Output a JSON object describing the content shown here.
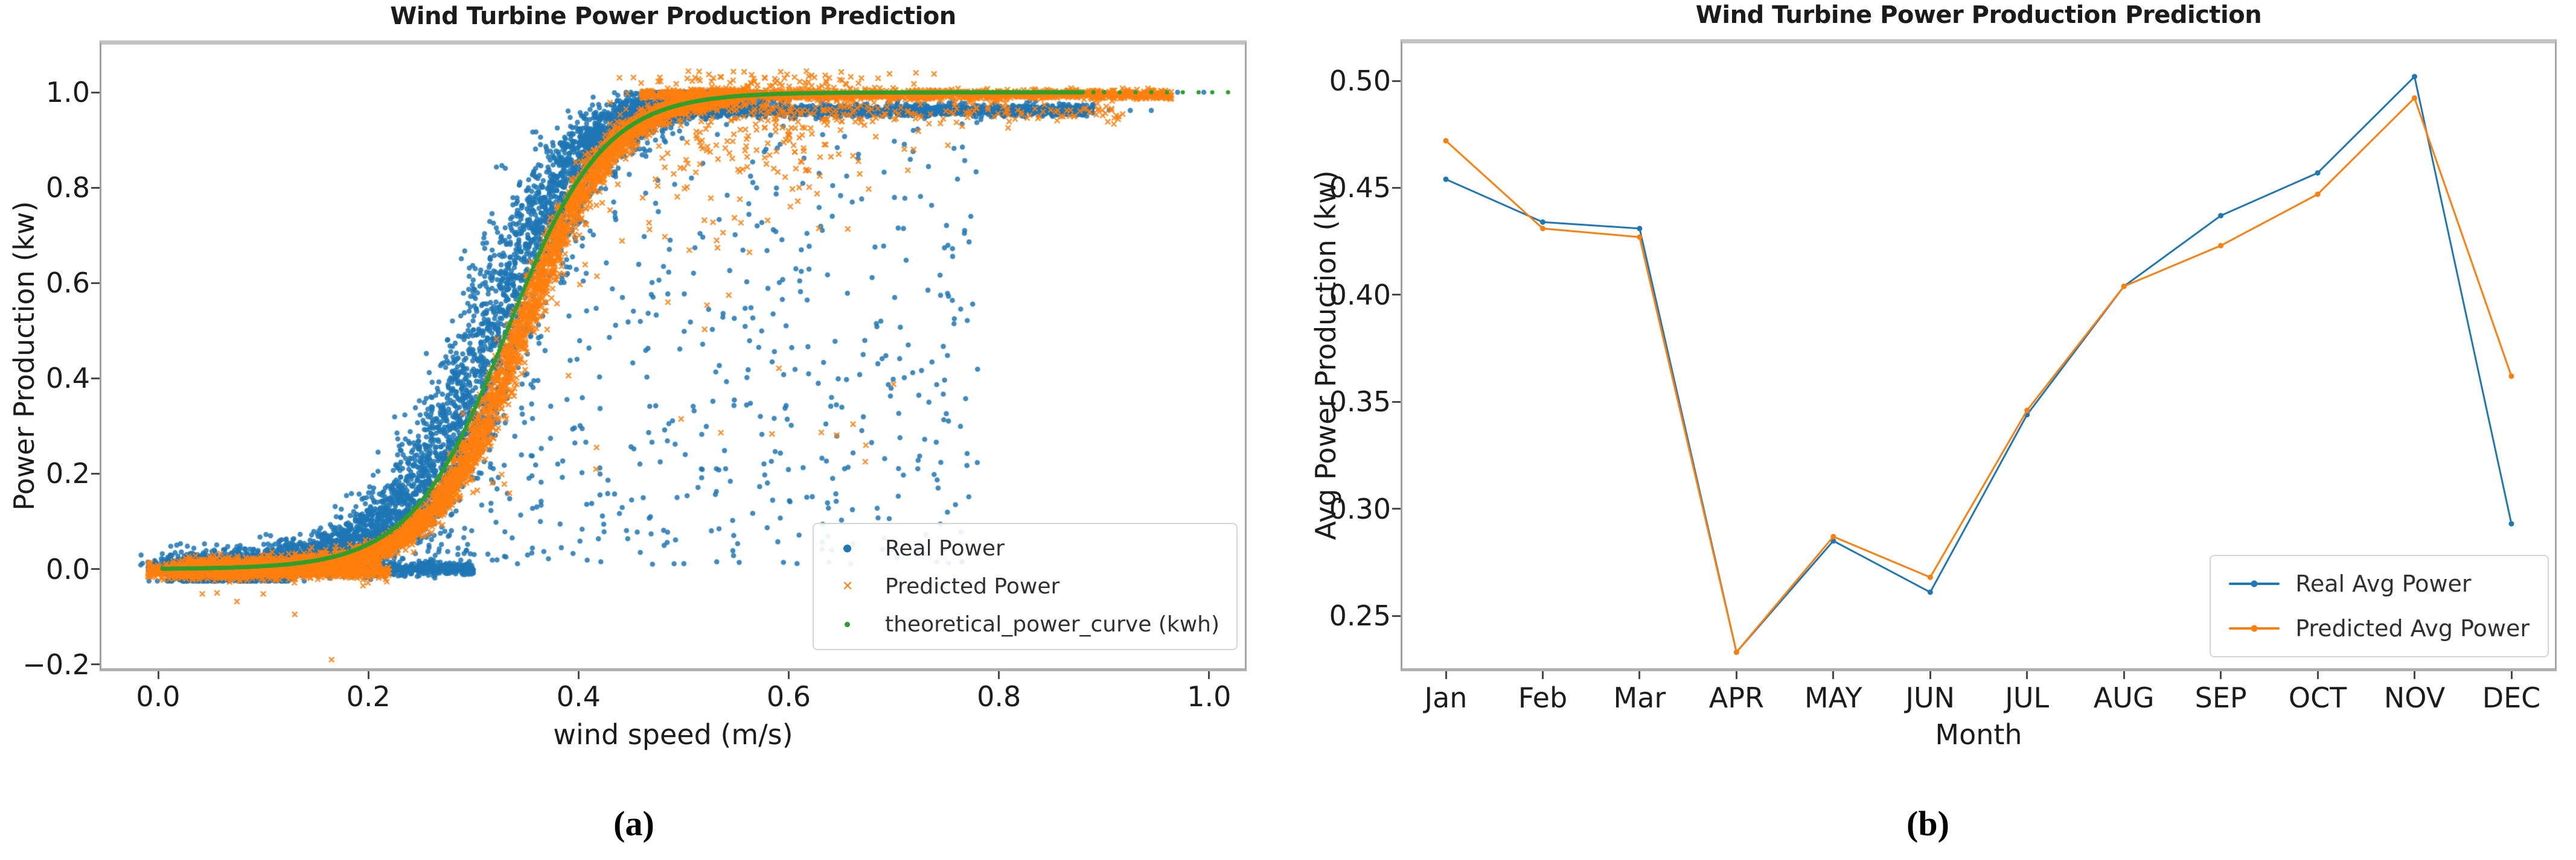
{
  "page": {
    "background": "#ffffff"
  },
  "chart_data": [
    {
      "panel": "a",
      "type": "scatter",
      "title": "Wind Turbine Power Production Prediction",
      "xlabel": "wind speed (m/s)",
      "ylabel": "Power Production (kw)",
      "caption": "(a)",
      "xlim": [
        -0.054,
        1.034
      ],
      "ylim": [
        -0.208,
        1.1
      ],
      "grid": false,
      "xtick_labels": [
        "0.0",
        "0.2",
        "0.4",
        "0.6",
        "0.8",
        "1.0"
      ],
      "xtick_values": [
        0,
        0.2,
        0.4,
        0.6,
        0.8,
        1
      ],
      "ytick_labels": [
        "−0.2",
        "0.0",
        "0.2",
        "0.4",
        "0.6",
        "0.8",
        "1.0"
      ],
      "ytick_values": [
        -0.2,
        0,
        0.2,
        0.4,
        0.6,
        0.8,
        1
      ],
      "legend": {
        "position": "lower right",
        "items": [
          {
            "label": "Real Power",
            "color": "#1f77b4",
            "marker": "circle"
          },
          {
            "label": "Predicted Power",
            "color": "#ff7f0e",
            "marker": "x"
          },
          {
            "label": "theoretical_power_curve (kwh)",
            "color": "#2ca02c",
            "marker": "dot"
          }
        ]
      },
      "seed": 11,
      "series": [
        {
          "name": "Real Power",
          "color": "#1f77b4",
          "marker": "circle",
          "clusters": [
            {
              "kind": "sigmoid_band",
              "n": 5800,
              "x": [
                0.02,
                0.56
              ],
              "center": 0.318,
              "scale": 0.046,
              "xnoise": 0.02,
              "ynoise": 0.018,
              "cap": 1.0
            },
            {
              "kind": "hband",
              "n": 1450,
              "x": [
                0.48,
                0.89
              ],
              "y": 0.962,
              "sd": 0.006
            },
            {
              "kind": "hband",
              "n": 1100,
              "x": [
                -0.01,
                0.3
              ],
              "y": 0.0,
              "sd": 0.007
            },
            {
              "kind": "under_curve",
              "n": 650,
              "x": [
                0.2,
                0.78
              ],
              "center": 0.318,
              "scale": 0.046,
              "ymin": 0.01,
              "pow": 1.25
            },
            {
              "kind": "points",
              "pts": [
                [
                  0.87,
                  1.0
                ],
                [
                  0.885,
                  1.0
                ],
                [
                  0.9,
                  1.0
                ],
                [
                  0.92,
                  1.0
                ],
                [
                  0.94,
                  1.0
                ],
                [
                  0.97,
                  1.0
                ],
                [
                  0.995,
                  1.0
                ],
                [
                  0.905,
                  0.963
                ],
                [
                  0.925,
                  0.962
                ],
                [
                  0.945,
                  0.962
                ]
              ]
            }
          ]
        },
        {
          "name": "Predicted Power",
          "color": "#ff7f0e",
          "marker": "x",
          "clusters": [
            {
              "kind": "sigmoid_band",
              "n": 5200,
              "x": [
                0.02,
                0.55
              ],
              "center": 0.346,
              "scale": 0.043,
              "xnoise": 0.007,
              "ynoise": 0.01,
              "cap": 1.005
            },
            {
              "kind": "hband",
              "n": 1500,
              "x": [
                0.46,
                0.965
              ],
              "y": 0.995,
              "sd": 0.005
            },
            {
              "kind": "blob",
              "n": 330,
              "cx": 0.585,
              "sx": 0.075,
              "xmin": 0.43,
              "xmax": 0.8,
              "ytop": 1.045,
              "yspread": 0.13
            },
            {
              "kind": "hband",
              "n": 150,
              "x": [
                0.55,
                0.92
              ],
              "y": 0.958,
              "sd": 0.012
            },
            {
              "kind": "hband",
              "n": 800,
              "x": [
                -0.01,
                0.22
              ],
              "y": -0.003,
              "sd": 0.009
            },
            {
              "kind": "under_curve",
              "n": 45,
              "x": [
                0.3,
                0.7
              ],
              "center": 0.346,
              "scale": 0.043,
              "ymin": 0.15,
              "pow": 1.0
            },
            {
              "kind": "points",
              "pts": [
                [
                  0.042,
                  -0.052
                ],
                [
                  0.056,
                  -0.05
                ],
                [
                  0.075,
                  -0.068
                ],
                [
                  0.1,
                  -0.052
                ],
                [
                  0.13,
                  -0.095
                ],
                [
                  0.165,
                  -0.19
                ]
              ]
            }
          ]
        },
        {
          "name": "theoretical_power_curve (kwh)",
          "color": "#2ca02c",
          "marker": "dot",
          "clusters": [
            {
              "kind": "curve",
              "n": 700,
              "x": [
                0.004,
                0.88
              ],
              "center": 0.332,
              "scale": 0.0455,
              "sat": 1.0
            },
            {
              "kind": "points",
              "pts": [
                [
                  0.89,
                  1.0
                ],
                [
                  0.9,
                  1.0
                ],
                [
                  0.915,
                  1.0
                ],
                [
                  0.93,
                  1.0
                ],
                [
                  0.945,
                  1.0
                ],
                [
                  0.96,
                  1.0
                ],
                [
                  0.975,
                  1.0
                ],
                [
                  0.99,
                  1.0
                ],
                [
                  1.003,
                  1.0
                ],
                [
                  1.018,
                  1.0
                ]
              ]
            }
          ]
        }
      ]
    },
    {
      "panel": "b",
      "type": "line",
      "title": "Wind Turbine Power Production Prediction",
      "xlabel": "Month",
      "ylabel": "Avg Power Production (kw)",
      "caption": "(b)",
      "categories": [
        "Jan",
        "Feb",
        "Mar",
        "APR",
        "MAY",
        "JUN",
        "JUL",
        "AUG",
        "SEP",
        "OCT",
        "NOV",
        "DEC"
      ],
      "ylim": [
        0.2255,
        0.5175
      ],
      "grid": false,
      "ytick_labels": [
        "0.25",
        "0.30",
        "0.35",
        "0.40",
        "0.45",
        "0.50"
      ],
      "ytick_values": [
        0.25,
        0.3,
        0.35,
        0.4,
        0.45,
        0.5
      ],
      "legend": {
        "position": "lower right",
        "items": [
          {
            "label": "Real Avg Power",
            "color": "#1f77b4"
          },
          {
            "label": "Predicted Avg Power",
            "color": "#ff7f0e"
          }
        ]
      },
      "series": [
        {
          "name": "Real Avg Power",
          "color": "#1f77b4",
          "values": [
            0.454,
            0.434,
            0.431,
            0.233,
            0.285,
            0.261,
            0.344,
            0.404,
            0.437,
            0.457,
            0.502,
            0.293
          ]
        },
        {
          "name": "Predicted Avg Power",
          "color": "#ff7f0e",
          "values": [
            0.472,
            0.431,
            0.427,
            0.233,
            0.287,
            0.268,
            0.346,
            0.404,
            0.423,
            0.447,
            0.492,
            0.362
          ]
        }
      ]
    }
  ]
}
